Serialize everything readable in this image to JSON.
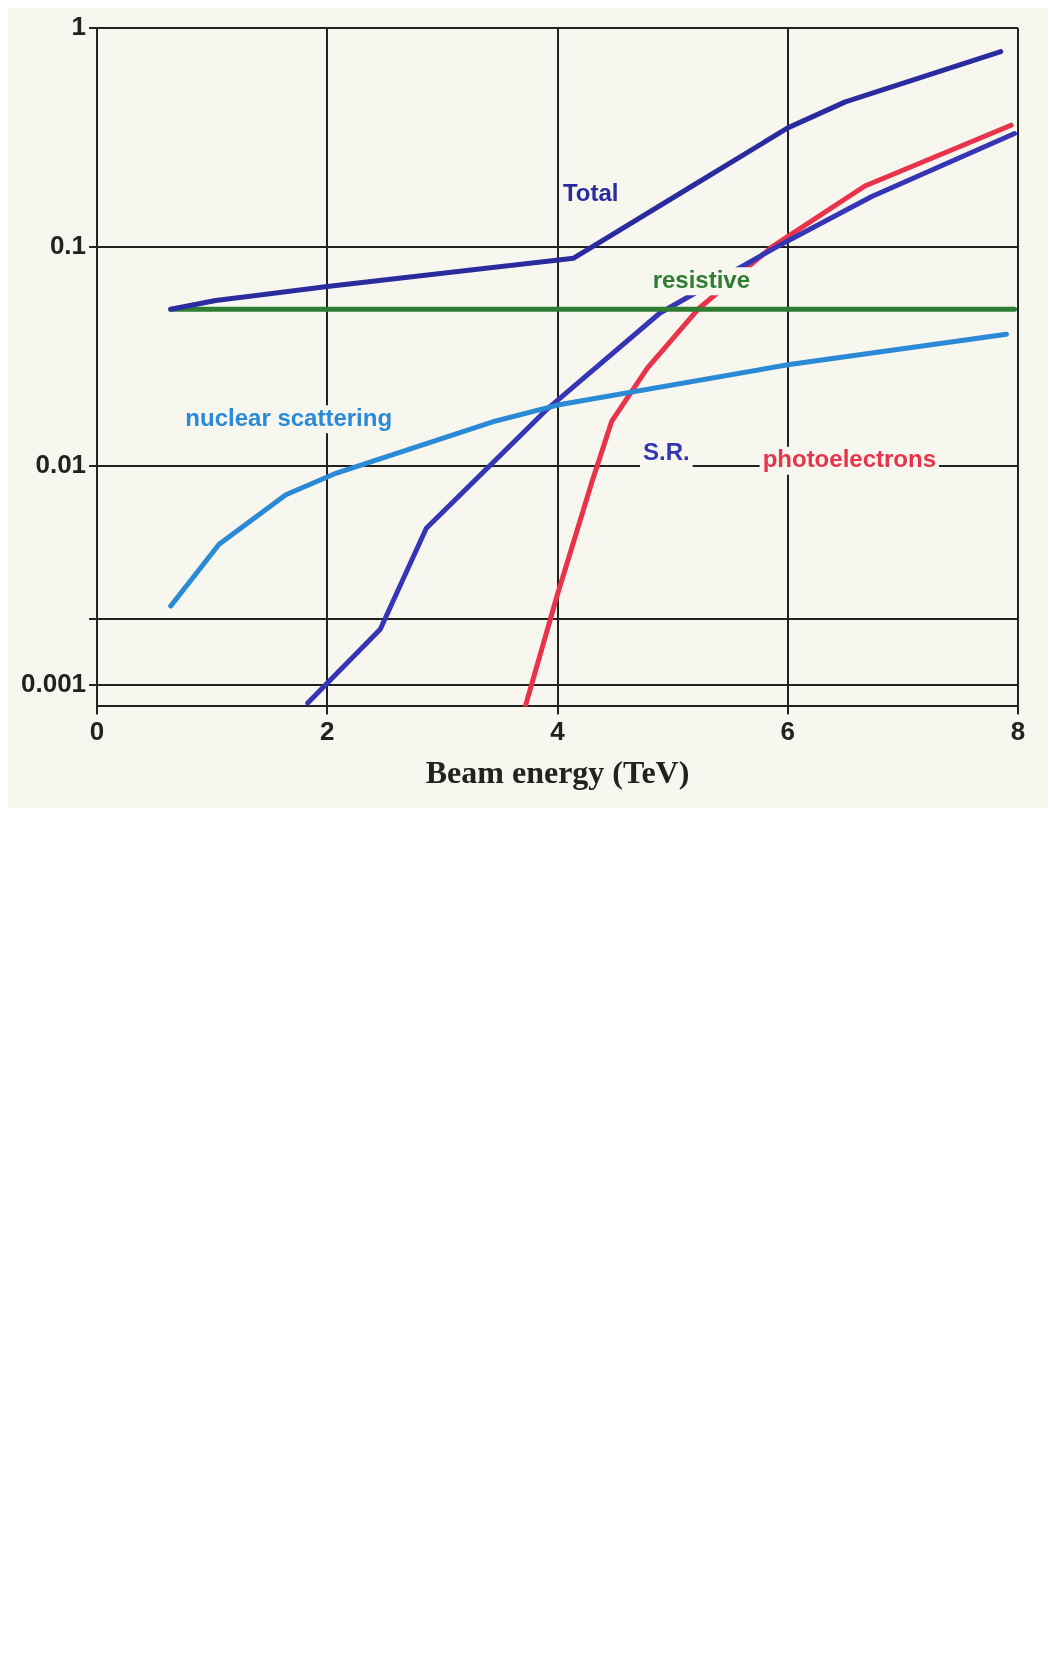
{
  "chart_data": {
    "type": "line",
    "xlabel": "Beam energy (TeV)",
    "log": "y",
    "grid": true,
    "legend": false,
    "marker": "none",
    "line_style": "solid",
    "xlim": [
      0,
      8
    ],
    "xticks": [
      0,
      2,
      4,
      6,
      8
    ],
    "ylim": [
      0.0008,
      1
    ],
    "yticks": [
      {
        "value": 0.001,
        "label": "0.001"
      },
      {
        "value": 0.002,
        "label": null
      },
      0.01,
      0.1,
      1
    ],
    "series": [
      {
        "name": "Total",
        "color": "#2b2ba0",
        "x": [
          0.64,
          1.03,
          2,
          4.14,
          5.17,
          6,
          6.5,
          7.85
        ],
        "values": [
          0.052,
          0.057,
          0.066,
          0.089,
          0.19,
          0.35,
          0.46,
          0.78
        ]
      },
      {
        "name": "resistive",
        "color": "#2e7d32",
        "x": [
          0.64,
          7.97
        ],
        "values": [
          0.052,
          0.052
        ]
      },
      {
        "name": "nuclear scattering",
        "color": "#2a8ad6",
        "x": [
          0.64,
          1.06,
          1.64,
          2.08,
          3.45,
          4,
          6,
          7.9
        ],
        "values": [
          0.0023,
          0.0044,
          0.0074,
          0.0093,
          0.016,
          0.019,
          0.029,
          0.04
        ]
      },
      {
        "name": "S.R.",
        "color": "#3535b5",
        "x": [
          1.83,
          2.46,
          2.86,
          3.9,
          4.89,
          5.9,
          6.73,
          7.97
        ],
        "values": [
          0.00083,
          0.0018,
          0.0052,
          0.018,
          0.05,
          0.1,
          0.17,
          0.33
        ]
      },
      {
        "name": "photoelectrons",
        "color": "#e8334a",
        "x": [
          3.72,
          4,
          4.3,
          4.47,
          4.78,
          5.22,
          5.86,
          6.67,
          7.94
        ],
        "values": [
          0.0008,
          0.0026,
          0.0085,
          0.016,
          0.028,
          0.052,
          0.1,
          0.19,
          0.36
        ]
      }
    ]
  }
}
